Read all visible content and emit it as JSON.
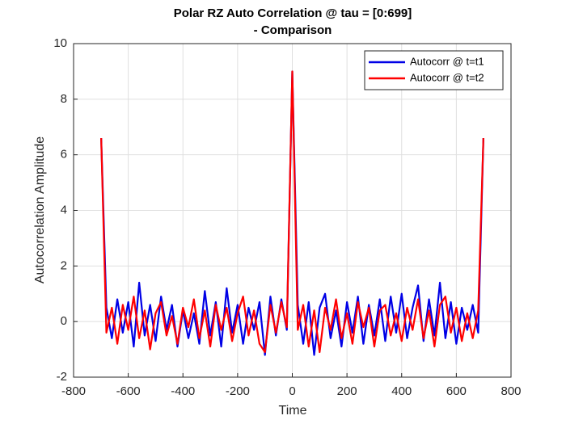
{
  "chart_data": {
    "type": "line",
    "title": [
      "Polar RZ Auto Correlation @ tau = [0:699]",
      "- Comparison"
    ],
    "xlabel": "Time",
    "ylabel": "Autocorrelation Amplitude",
    "x": [
      -699,
      -680,
      -660,
      -640,
      -620,
      -600,
      -580,
      -560,
      -540,
      -520,
      -500,
      -480,
      -460,
      -440,
      -420,
      -400,
      -380,
      -360,
      -340,
      -320,
      -300,
      -280,
      -260,
      -240,
      -220,
      -200,
      -180,
      -160,
      -140,
      -120,
      -100,
      -80,
      -60,
      -40,
      -20,
      0,
      20,
      40,
      60,
      80,
      100,
      120,
      140,
      160,
      180,
      200,
      220,
      240,
      260,
      280,
      300,
      320,
      340,
      360,
      380,
      400,
      420,
      440,
      460,
      480,
      500,
      520,
      540,
      560,
      580,
      600,
      620,
      640,
      660,
      680,
      699
    ],
    "series": [
      {
        "name": "Autocorr @ t=t1",
        "color": "#0000e6",
        "values": [
          6.6,
          0.5,
          -0.6,
          0.8,
          -0.4,
          0.7,
          -0.9,
          1.4,
          -0.5,
          0.6,
          -0.7,
          0.9,
          -0.3,
          0.6,
          -0.9,
          0.4,
          -0.6,
          0.3,
          -0.8,
          1.1,
          -0.5,
          0.7,
          -0.9,
          1.2,
          -0.4,
          0.6,
          -0.8,
          0.5,
          -0.3,
          0.7,
          -1.2,
          0.9,
          -0.5,
          0.8,
          -0.3,
          9.0,
          0.6,
          -0.8,
          0.7,
          -1.2,
          0.5,
          1.0,
          -0.6,
          0.4,
          -0.9,
          0.7,
          -0.4,
          0.9,
          -0.8,
          0.6,
          -0.5,
          0.8,
          -0.7,
          0.9,
          -0.4,
          1.0,
          -0.6,
          0.5,
          1.3,
          -0.7,
          0.8,
          -0.5,
          1.4,
          -0.6,
          0.7,
          -0.8,
          0.5,
          -0.3,
          0.6,
          -0.4,
          6.6
        ]
      },
      {
        "name": "Autocorr @ t=t2",
        "color": "#ff0000",
        "values": [
          6.6,
          -0.4,
          0.5,
          -0.8,
          0.6,
          -0.3,
          0.9,
          -0.6,
          0.4,
          -1.0,
          0.3,
          0.7,
          -0.5,
          0.2,
          -0.8,
          0.5,
          -0.2,
          0.8,
          -0.6,
          0.4,
          -0.9,
          0.6,
          -0.3,
          0.5,
          -0.7,
          0.3,
          0.9,
          -0.5,
          0.4,
          -0.8,
          -1.1,
          0.6,
          -0.4,
          0.7,
          -0.2,
          9.0,
          -0.3,
          0.6,
          -0.9,
          0.4,
          -1.1,
          0.5,
          -0.3,
          0.8,
          -0.6,
          0.3,
          -0.8,
          0.7,
          -0.2,
          0.5,
          -0.9,
          0.4,
          0.6,
          -0.5,
          0.3,
          -0.7,
          0.5,
          -0.3,
          0.8,
          -0.6,
          0.4,
          -0.9,
          0.6,
          0.9,
          -0.4,
          0.5,
          -0.7,
          0.3,
          -0.6,
          0.4,
          6.6
        ]
      }
    ],
    "xlim": [
      -800,
      800
    ],
    "xticks": [
      -800,
      -600,
      -400,
      -200,
      0,
      200,
      400,
      600,
      800
    ],
    "ylim": [
      -2,
      10
    ],
    "yticks": [
      -2,
      0,
      2,
      4,
      6,
      8,
      10
    ],
    "grid": true,
    "legend": "northeast"
  }
}
